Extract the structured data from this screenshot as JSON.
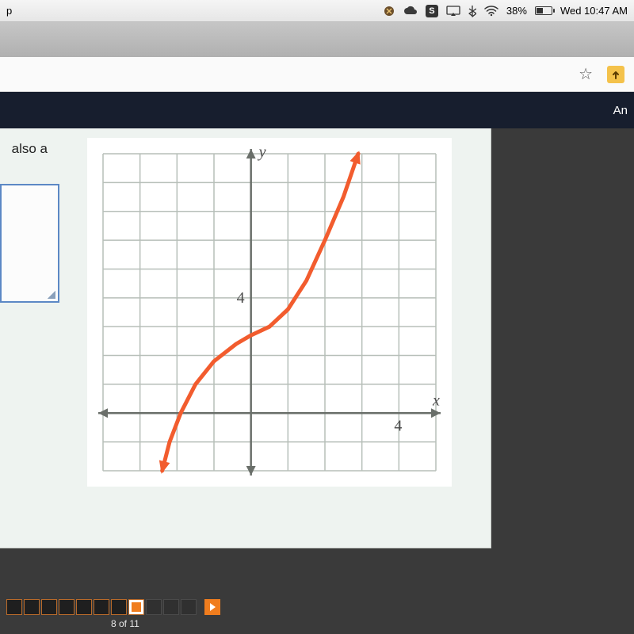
{
  "menubar": {
    "app_fragment": "p",
    "battery_pct": "38%",
    "clock": "Wed 10:47 AM"
  },
  "page_header": {
    "right_fragment": "An"
  },
  "question": {
    "text_fragment": "also a"
  },
  "chart": {
    "type": "line",
    "x_label": "x",
    "y_label": "y",
    "x_tick_label": "4",
    "y_tick_label": "4",
    "xlim": [
      -4,
      5
    ],
    "ylim": [
      -2,
      9
    ],
    "grid_step": 1,
    "grid_color": "#b7bfb9",
    "axis_color": "#6a6f6a",
    "curve_color": "#f25c2e",
    "curve_width": 5,
    "background_color": "#ffffff",
    "curve_points": [
      [
        -2.4,
        -2.0
      ],
      [
        -2.2,
        -1.0
      ],
      [
        -1.9,
        0.0
      ],
      [
        -1.5,
        1.0
      ],
      [
        -1.0,
        1.8
      ],
      [
        -0.4,
        2.4
      ],
      [
        0.0,
        2.7
      ],
      [
        0.5,
        3.0
      ],
      [
        1.0,
        3.6
      ],
      [
        1.5,
        4.6
      ],
      [
        2.0,
        6.0
      ],
      [
        2.5,
        7.5
      ],
      [
        2.9,
        9.0
      ]
    ]
  },
  "navigation": {
    "current": 8,
    "total": 11,
    "label": "8 of 11"
  },
  "colors": {
    "accent": "#f07d1e",
    "panel_bg": "#eef3f0",
    "dark_bg": "#171e2e"
  }
}
